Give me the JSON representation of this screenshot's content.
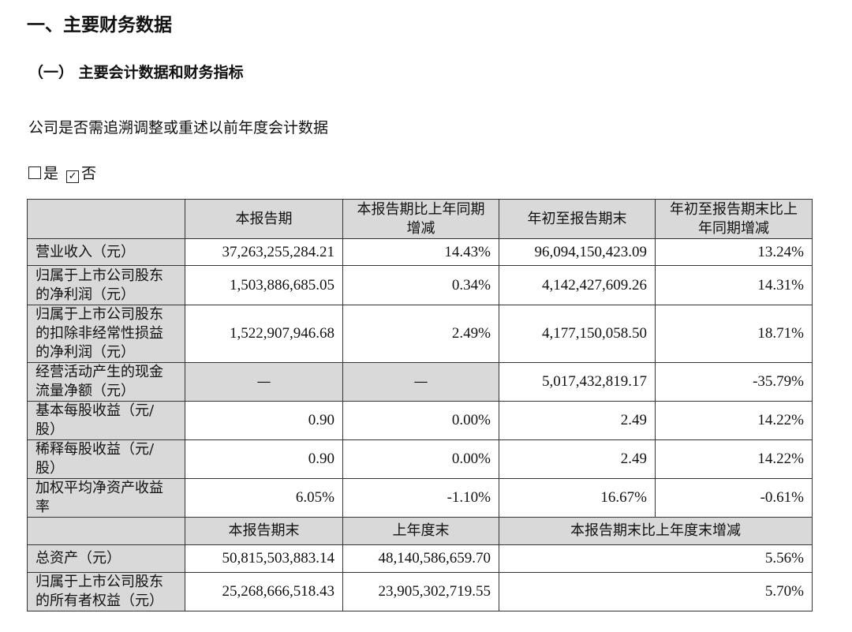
{
  "heading1": "一、主要财务数据",
  "heading2": "（一）  主要会计数据和财务指标",
  "question": "公司是否需追溯调整或重述以前年度会计数据",
  "options": [
    {
      "label": "是",
      "checked": false
    },
    {
      "label": "否",
      "checked": true
    }
  ],
  "table": {
    "header": [
      "",
      "本报告期",
      "本报告期比上年同期\n增减",
      "年初至报告期末",
      "年初至报告期末比上\n年同期增减"
    ],
    "rows": [
      {
        "label": "营业收入（元）",
        "values": [
          "37,263,255,284.21",
          "14.43%",
          "96,094,150,423.09",
          "13.24%"
        ]
      },
      {
        "label": "归属于上市公司股东\n的净利润（元）",
        "values": [
          "1,503,886,685.05",
          "0.34%",
          "4,142,427,609.26",
          "14.31%"
        ]
      },
      {
        "label": "归属于上市公司股东\n的扣除非经常性损益\n的净利润（元）",
        "values": [
          "1,522,907,946.68",
          "2.49%",
          "4,177,150,058.50",
          "18.71%"
        ]
      },
      {
        "label": "经营活动产生的现金\n流量净额（元）",
        "values": [
          "—",
          "—",
          "5,017,432,819.17",
          "-35.79%"
        ]
      },
      {
        "label": "基本每股收益（元/\n股）",
        "values": [
          "0.90",
          "0.00%",
          "2.49",
          "14.22%"
        ]
      },
      {
        "label": "稀释每股收益（元/\n股）",
        "values": [
          "0.90",
          "0.00%",
          "2.49",
          "14.22%"
        ]
      },
      {
        "label": "加权平均净资产收益\n率",
        "values": [
          "6.05%",
          "-1.10%",
          "16.67%",
          "-0.61%"
        ]
      }
    ],
    "header2": [
      "",
      "本报告期末",
      "上年度末",
      "本报告期末比上年度末增减"
    ],
    "rows2": [
      {
        "label": "总资产（元）",
        "values": [
          "50,815,503,883.14",
          "48,140,586,659.70",
          "5.56%"
        ]
      },
      {
        "label": "归属于上市公司股东\n的所有者权益（元）",
        "values": [
          "25,268,666,518.43",
          "23,905,302,719.55",
          "5.70%"
        ]
      }
    ]
  }
}
